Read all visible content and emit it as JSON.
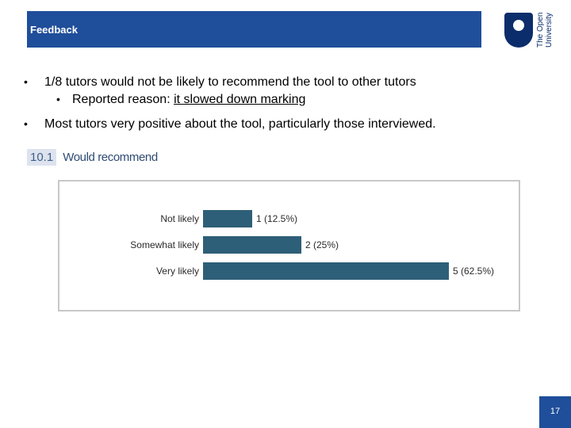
{
  "header": {
    "title": "Feedback"
  },
  "logo": {
    "text_line1": "The Open",
    "text_line2": "University"
  },
  "bullets": {
    "b1": "1/8 tutors would not be likely to recommend the tool to other tutors",
    "b1_sub_prefix": "Reported reason: ",
    "b1_sub_underlined": "it slowed down marking",
    "b2": "Most tutors very positive about the tool, particularly those interviewed."
  },
  "question": {
    "number": "10.1",
    "text": "Would recommend"
  },
  "chart_data": {
    "type": "bar",
    "orientation": "horizontal",
    "categories": [
      "Not likely",
      "Somewhat likely",
      "Very likely"
    ],
    "values": [
      1,
      2,
      5
    ],
    "data_labels": [
      "1 (12.5%)",
      "2 (25%)",
      "5 (62.5%)"
    ],
    "bar_color": "#2e5f78",
    "grid": false
  },
  "page": {
    "number": "17"
  },
  "colors": {
    "header": "#1f4e9a",
    "logo": "#0c2d6b"
  }
}
